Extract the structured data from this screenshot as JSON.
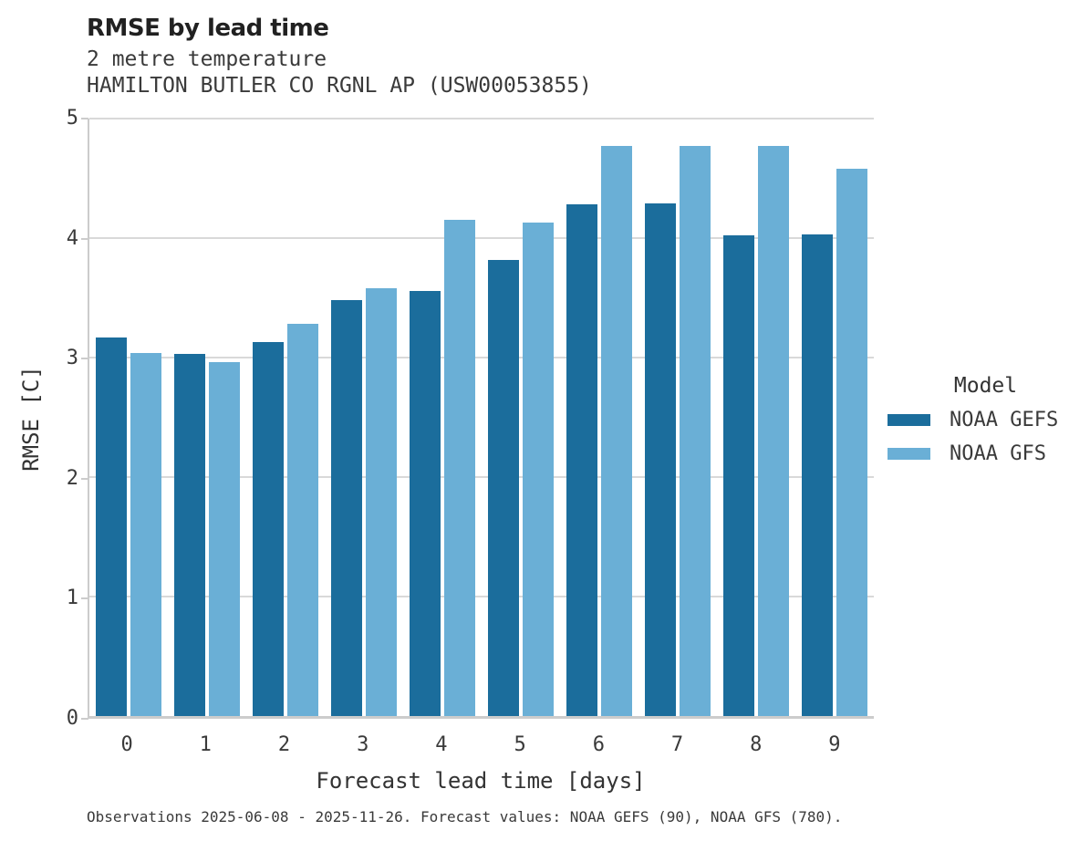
{
  "header": {
    "title": "RMSE by lead time",
    "subtitle1": "2 metre temperature",
    "subtitle2": "HAMILTON BUTLER CO RGNL AP (USW00053855)"
  },
  "chart_data": {
    "type": "bar",
    "title": "RMSE by lead time",
    "subtitle": "2 metre temperature",
    "station": "HAMILTON BUTLER CO RGNL AP (USW00053855)",
    "categories": [
      "0",
      "1",
      "2",
      "3",
      "4",
      "5",
      "6",
      "7",
      "8",
      "9"
    ],
    "series": [
      {
        "name": "NOAA GEFS",
        "color": "#1b6d9c",
        "values": [
          3.17,
          3.03,
          3.13,
          3.48,
          3.56,
          3.82,
          4.28,
          4.29,
          4.02,
          4.03
        ]
      },
      {
        "name": "NOAA GFS",
        "color": "#6aafd6",
        "values": [
          3.04,
          2.96,
          3.28,
          3.58,
          4.15,
          4.13,
          4.77,
          4.77,
          4.77,
          4.58
        ]
      }
    ],
    "xlabel": "Forecast lead time [days]",
    "ylabel": "RMSE [C]",
    "ylim": [
      0,
      5
    ],
    "yticks": [
      0,
      1,
      2,
      3,
      4,
      5
    ],
    "grid": true,
    "legend_title": "Model",
    "legend_position": "right"
  },
  "footer": {
    "note": "Observations 2025-06-08 - 2025-11-26. Forecast values: NOAA GEFS (90), NOAA GFS (780)."
  },
  "colors": {
    "gridline": "#d9d9d9",
    "spine": "#cccccc",
    "text": "#3a3a3a",
    "title": "#212121"
  }
}
